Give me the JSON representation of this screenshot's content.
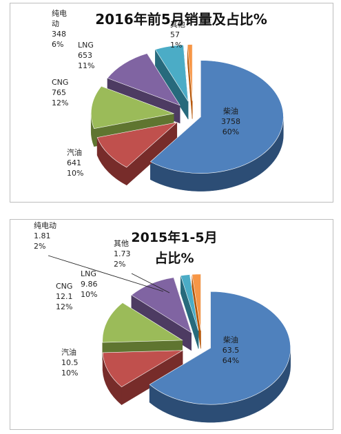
{
  "chart_data": [
    {
      "type": "pie",
      "title": "2016年前5月销量及占比%",
      "title_lines": [
        "2016年前5月销量及占比%"
      ],
      "categories": [
        "柴油",
        "汽油",
        "CNG",
        "LNG",
        "纯电动",
        "其他"
      ],
      "category_label_lines": [
        [
          "柴油"
        ],
        [
          "汽油"
        ],
        [
          "CNG"
        ],
        [
          "LNG"
        ],
        [
          "纯电",
          "动"
        ],
        [
          "其他"
        ]
      ],
      "values": [
        3758,
        641,
        765,
        653,
        348,
        57
      ],
      "value_labels": [
        "3758",
        "641",
        "765",
        "653",
        "348",
        "57"
      ],
      "percent_labels": [
        "60%",
        "10%",
        "12%",
        "11%",
        "6%",
        "1%"
      ],
      "exploded": true,
      "style": "3d"
    },
    {
      "type": "pie",
      "title": "2015年1-5月占比%",
      "title_lines": [
        "2015年1-5月",
        "占比%"
      ],
      "categories": [
        "柴油",
        "汽油",
        "CNG",
        "LNG",
        "纯电动",
        "其他"
      ],
      "category_label_lines": [
        [
          "柴油"
        ],
        [
          "汽油"
        ],
        [
          "CNG"
        ],
        [
          "LNG"
        ],
        [
          "纯电动"
        ],
        [
          "其他"
        ]
      ],
      "values": [
        63.5,
        10.5,
        12.1,
        9.86,
        1.81,
        1.73
      ],
      "value_labels": [
        "63.5",
        "10.5",
        "12.1",
        "9.86",
        "1.81",
        "1.73"
      ],
      "percent_labels": [
        "64%",
        "10%",
        "12%",
        "10%",
        "2%",
        "2%"
      ],
      "exploded": true,
      "style": "3d"
    }
  ],
  "colors": {
    "top": [
      "#4f81bd",
      "#c0504d",
      "#9bbb59",
      "#8064a2",
      "#4bacc6",
      "#f79646"
    ],
    "side": [
      "#2c4d75",
      "#772c2a",
      "#5f7530",
      "#4d3b62",
      "#276a7c",
      "#b65708"
    ]
  }
}
